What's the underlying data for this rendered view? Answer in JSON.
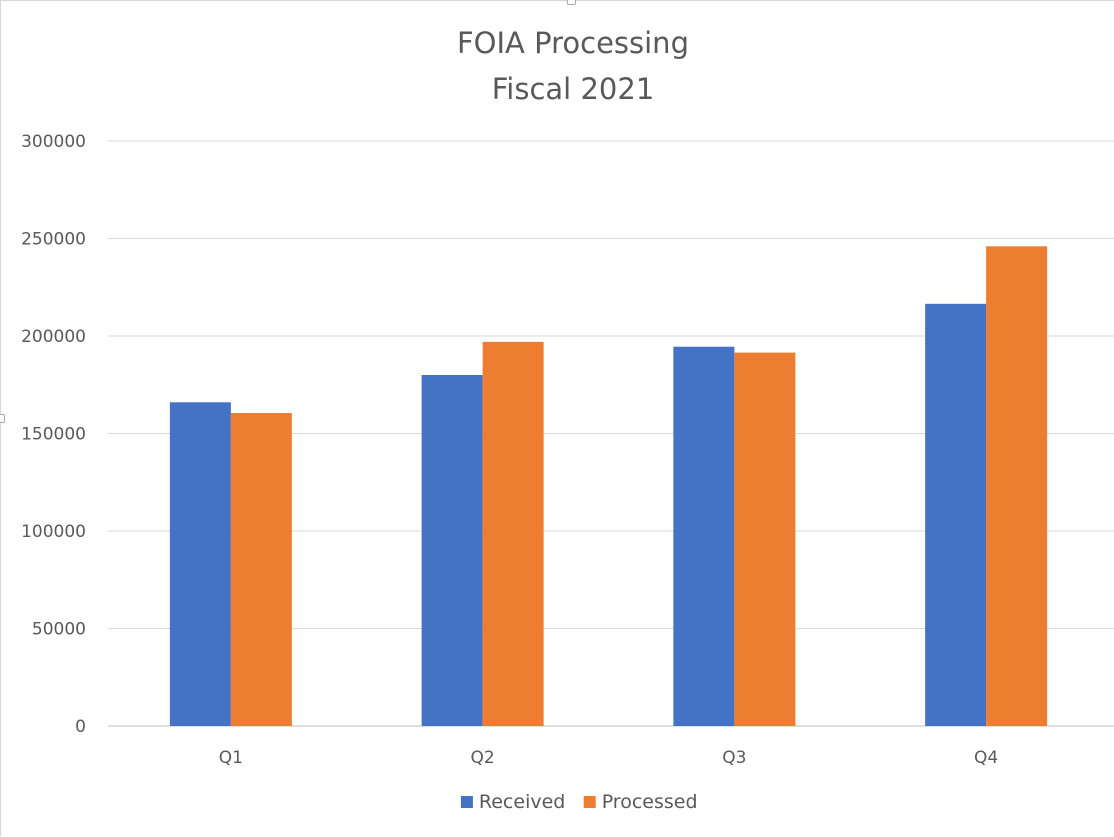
{
  "chart_data": {
    "type": "bar",
    "title": "FOIA Processing",
    "subtitle": "Fiscal 2021",
    "xlabel": "",
    "ylabel": "",
    "categories": [
      "Q1",
      "Q2",
      "Q3",
      "Q4"
    ],
    "series": [
      {
        "name": "Received",
        "color": "#4472c4",
        "values": [
          166000,
          180000,
          194500,
          216500
        ]
      },
      {
        "name": "Processed",
        "color": "#ed7d31",
        "values": [
          160500,
          197000,
          191500,
          246000
        ]
      }
    ],
    "ylim": [
      0,
      300000
    ],
    "yticks": [
      "0",
      "50000",
      "100000",
      "150000",
      "200000",
      "250000",
      "300000"
    ],
    "grid": true,
    "legend_position": "bottom"
  }
}
